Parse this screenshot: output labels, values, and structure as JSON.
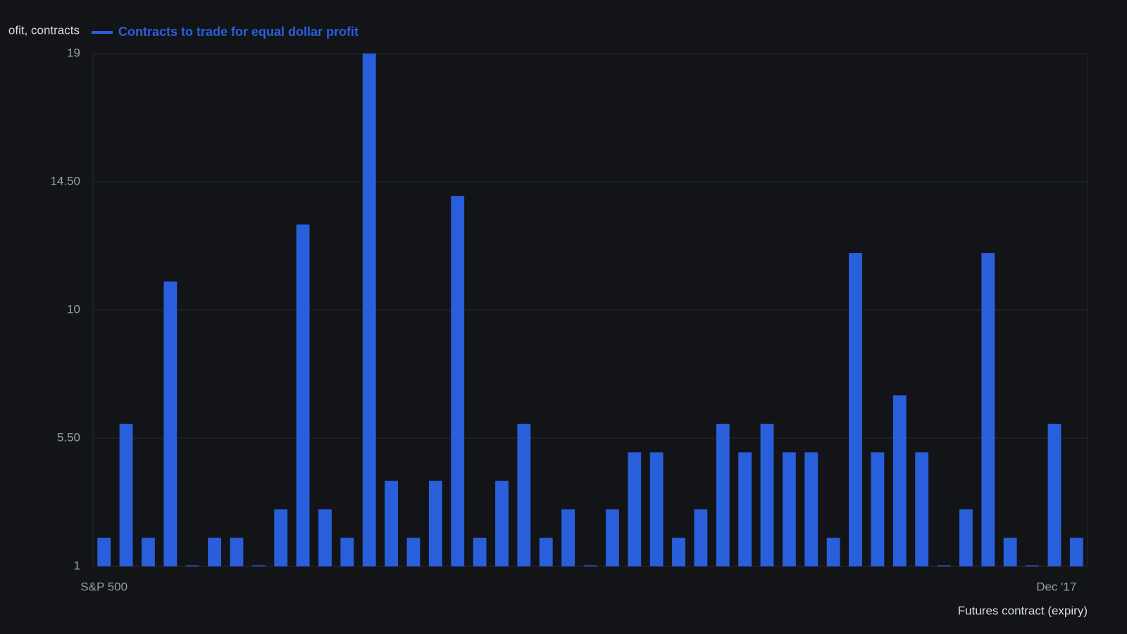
{
  "chart_data": {
    "type": "bar",
    "y_axis_label": "ofit, contracts",
    "x_axis_label": "Futures contract (expiry)",
    "categories": [
      "S&P 500",
      null,
      null,
      null,
      null,
      null,
      null,
      null,
      null,
      null,
      null,
      null,
      null,
      null,
      null,
      null,
      null,
      null,
      null,
      null,
      null,
      null,
      null,
      null,
      null,
      null,
      null,
      null,
      null,
      null,
      null,
      null,
      null,
      null,
      null,
      null,
      null,
      null,
      null,
      null,
      null,
      null,
      null,
      null,
      "Dec '17"
    ],
    "series": [
      {
        "name": "Contracts to trade for equal dollar profit",
        "color": "#2a5fdc",
        "values": [
          2,
          6,
          2,
          11,
          1,
          2,
          2,
          1,
          3,
          13,
          3,
          2,
          19,
          4,
          2,
          4,
          14,
          2,
          4,
          6,
          2,
          3,
          1,
          3,
          5,
          5,
          2,
          3,
          6,
          5,
          6,
          5,
          5,
          2,
          12,
          5,
          7,
          5,
          1,
          3,
          12,
          2,
          1,
          6,
          2
        ]
      }
    ],
    "ylim": [
      1,
      19
    ],
    "yticks": [
      1,
      {
        "value": 5.5,
        "label": "5.50"
      },
      10,
      {
        "value": 14.5,
        "label": "14.50"
      },
      19
    ],
    "grid": true,
    "legend": "top"
  }
}
